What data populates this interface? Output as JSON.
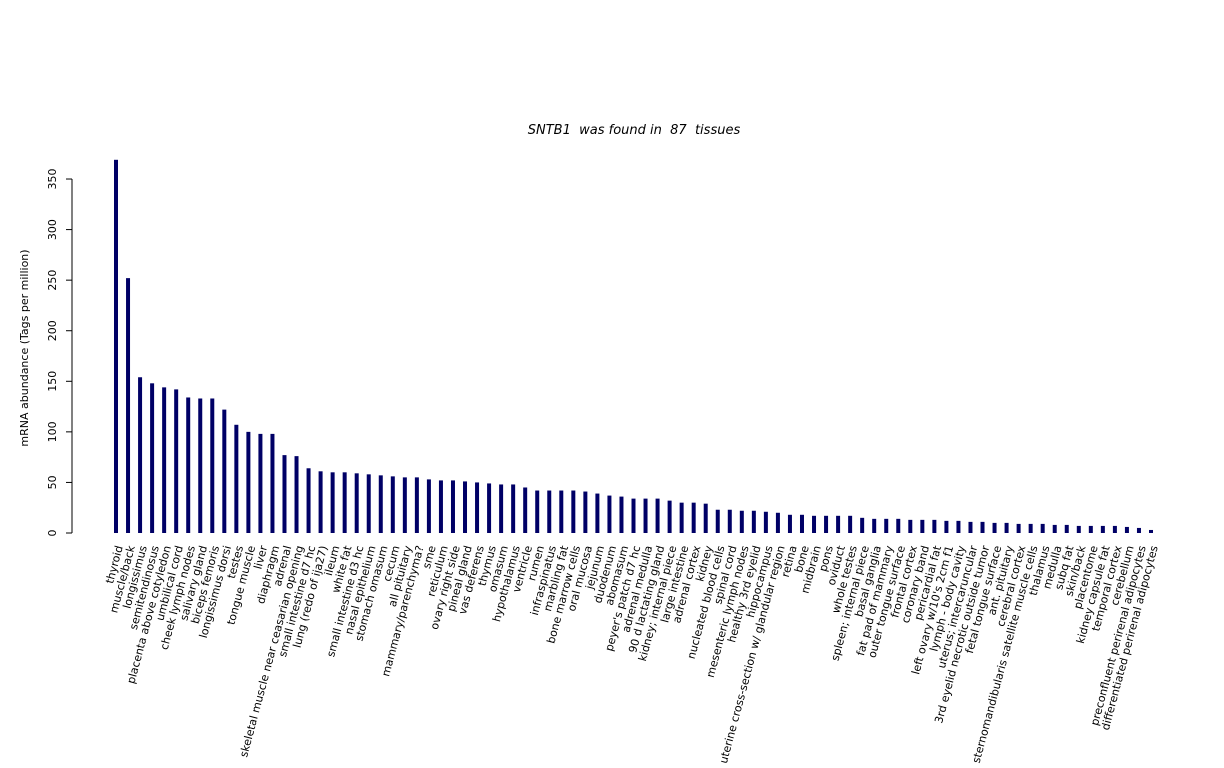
{
  "chart_data": {
    "type": "bar",
    "title": "SNTB1  was found in  87  tissues",
    "y_label": "mRNA abundance (Tags per million)",
    "color": "#000066",
    "ylim": [
      0,
      369
    ],
    "yticks": [
      0,
      50,
      100,
      150,
      200,
      250,
      300,
      350
    ],
    "categories": [
      "thyroid",
      "muscle/back",
      "longissimus",
      "semitendinosus",
      "placenta above cotyledon",
      "umbilical cord",
      "cheek lymph nodes",
      "salivary gland",
      "biceps femoris",
      "longissimus dorsi",
      "testes",
      "tongue muscle",
      "liver",
      "diaphragm",
      "adrenal",
      "skeletal muscle near ceasarian opening",
      "small intestine d7 hc",
      "lung (redo of ija27)",
      "ileum",
      "white fat",
      "small intestine d3 hc",
      "nasal epithelium",
      "stomach omasum",
      "cecum",
      "all pituitary",
      "mammary/parenchyma?",
      "sme",
      "reticulum",
      "ovary right side",
      "pineal gland",
      "vas deferens",
      "thymus",
      "omasum",
      "hypothalamus",
      "ventricle",
      "rumen",
      "infraspinatus",
      "marbling fat",
      "bone marrow cells",
      "oral mucosa",
      "jejunum",
      "duodenum",
      "abomasum",
      "peyer's patch d7 hc",
      "adrenal medulla",
      "90 d lactating gland",
      "kidney; internal piece",
      "large intestine",
      "adrenal cortex",
      "kidney",
      "nucleated blood cells",
      "spinal cord",
      "mesenteric lymph nodes",
      "healthy 3rd eyelid",
      "hippocampus",
      "uterine cross-section w/ glandular region",
      "retina",
      "bone",
      "midbrain",
      "pons",
      "oviduct",
      "whole testes",
      "spleen; internal piece",
      "basal ganglia",
      "fat pad of mammary",
      "outer tongue surface",
      "frontal cortex",
      "coronary band",
      "pericardial fat",
      "left ovary w/10's 2cm f1",
      "lymph - body cavity",
      "uterus; intercaruncular",
      "3rd eyelid necrotic outside tumor",
      "fetal tongue surface",
      "ant. pituitary",
      "cerebral cortex",
      "sternomandibularis satellite muscle cells",
      "thalamus",
      "medulla",
      "subq fat",
      "skin/back",
      "placentome",
      "kidney capsule fat",
      "temporal cortex",
      "cerebellum",
      "preconfluent perirenal adipocytes",
      "differentiated perirenal adipocytes"
    ],
    "values": [
      369,
      252,
      154,
      148,
      144,
      142,
      134,
      133,
      133,
      122,
      107,
      100,
      98,
      98,
      77,
      76,
      64,
      61,
      60,
      60,
      59,
      58,
      57,
      56,
      55,
      55,
      53,
      52,
      52,
      51,
      50,
      49,
      48,
      48,
      45,
      42,
      42,
      42,
      42,
      41,
      39,
      37,
      36,
      34,
      34,
      34,
      32,
      30,
      30,
      29,
      23,
      23,
      22,
      22,
      21,
      20,
      18,
      18,
      17,
      17,
      17,
      17,
      15,
      14,
      14,
      14,
      13,
      13,
      13,
      12,
      12,
      11,
      11,
      10,
      10,
      9,
      9,
      9,
      8,
      8,
      7,
      7,
      7,
      7,
      6,
      5,
      3
    ]
  }
}
